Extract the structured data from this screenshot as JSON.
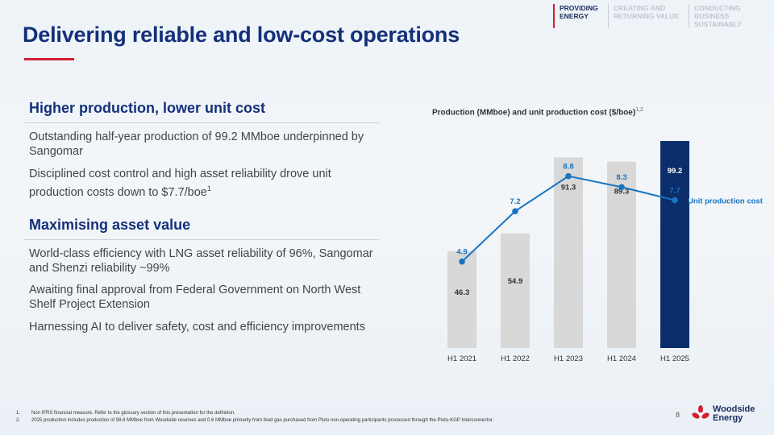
{
  "nav": [
    {
      "label": "PROVIDING ENERGY",
      "active": true
    },
    {
      "label": "CREATING AND RETURNING VALUE",
      "active": false
    },
    {
      "label": "CONDUCTING BUSINESS SUSTAINABLY",
      "active": false
    }
  ],
  "title": "Delivering reliable and low-cost operations",
  "section1": {
    "heading": "Higher production, lower unit cost",
    "bullet1": "Outstanding half-year production of 99.2 MMboe underpinned by Sangomar",
    "bullet2": "Disciplined cost control and high asset reliability drove unit production costs down to $7.7/boe",
    "bullet2_sup": "1"
  },
  "section2": {
    "heading": "Maximising asset value",
    "bullet1": "World-class efficiency with LNG asset reliability of 96%, Sangomar and Shenzi reliability ~99%",
    "bullet2": "Awaiting final approval from Federal Government on North West Shelf Project Extension",
    "bullet3": "Harnessing AI to deliver safety, cost and efficiency improvements"
  },
  "chart_title": "Production (MMboe) and unit production cost ($/boe)",
  "chart_title_sup": "1,2",
  "chart_data": {
    "type": "bar",
    "title": "Production (MMboe) and unit production cost ($/boe)",
    "categories": [
      "H1 2021",
      "H1 2022",
      "H1 2023",
      "H1 2024",
      "H1 2025"
    ],
    "series": [
      {
        "name": "Production (MMboe)",
        "type": "bar",
        "values": [
          46.3,
          54.9,
          91.3,
          89.3,
          99.2
        ]
      },
      {
        "name": "Unit production cost",
        "type": "line",
        "values": [
          4.9,
          7.2,
          8.8,
          8.3,
          7.7
        ]
      }
    ],
    "bar_ylim": [
      0,
      105
    ],
    "line_ylim": [
      0,
      10
    ],
    "line_label": "Unit production cost",
    "colors": {
      "bar": "#d8d8d8",
      "bar_highlight": "#0b2e6b",
      "line": "#1874c1",
      "line_label": "#1874c1"
    }
  },
  "footnotes": [
    {
      "num": "1.",
      "text": "Non IFRS financial measure. Refer to the glossary section of this presentation for the definition."
    },
    {
      "num": "2.",
      "text": "2025 production includes production of 98.6 MMboe from Woodside reserves and 0.6 MMboe primarily from feed gas purchased from Pluto non-operating participants processed through the Pluto-KGP Interconnector."
    }
  ],
  "page_number": "8",
  "logo": {
    "line1": "Woodside",
    "line2": "Energy",
    "icon": "woodside-flower-icon"
  }
}
